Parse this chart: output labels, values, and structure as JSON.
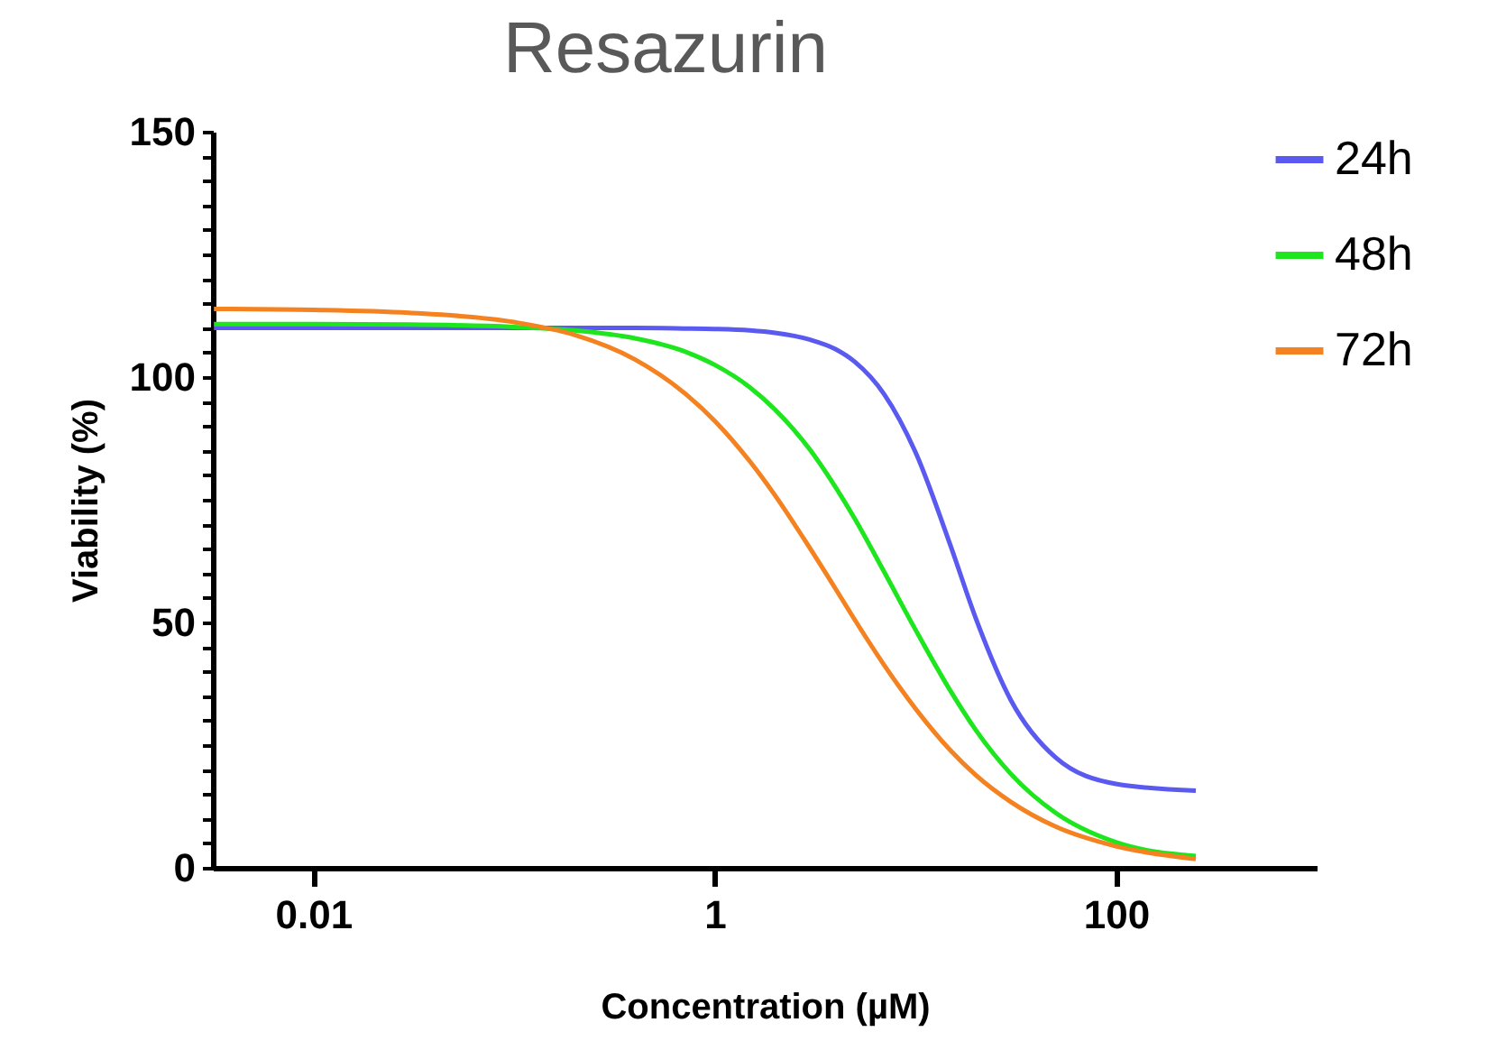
{
  "chart_data": {
    "type": "line",
    "title": "Resazurin",
    "xlabel": "Concentration (µM)",
    "ylabel": "Viability (%)",
    "log": "x",
    "x": [
      0.0032,
      0.01,
      0.03,
      0.1,
      0.2,
      0.4,
      0.7,
      1,
      1.5,
      2,
      3,
      4,
      5,
      7,
      10,
      15,
      20,
      30,
      50,
      100,
      250
    ],
    "series": [
      {
        "name": "24h",
        "color": "#5a5af0",
        "values": [
          110,
          110,
          110,
          110,
          110,
          110,
          109.9,
          109.8,
          109.5,
          109,
          107.6,
          105.7,
          103.1,
          96.5,
          84.8,
          65.6,
          50.9,
          34.1,
          22.5,
          17.1,
          15.7
        ]
      },
      {
        "name": "48h",
        "color": "#1ee61e",
        "values": [
          110.8,
          110.8,
          110.7,
          110.2,
          109.5,
          107.9,
          105.3,
          102.5,
          97.9,
          93.4,
          85.1,
          77.6,
          71.1,
          60.3,
          48.6,
          36,
          28.1,
          19.1,
          11.2,
          5.2,
          2.4
        ]
      },
      {
        "name": "72h",
        "color": "#f58220",
        "values": [
          113.9,
          113.7,
          113.1,
          111.2,
          108.6,
          103.6,
          96.9,
          91.1,
          82.8,
          75.9,
          65,
          56.9,
          50.5,
          41.3,
          32.5,
          23.9,
          18.9,
          13.4,
          8.4,
          4.4,
          1.8
        ]
      }
    ],
    "xlim": [
      0.00316,
      1000
    ],
    "xticks": [
      0.01,
      1,
      100
    ],
    "ylim": [
      0,
      150
    ],
    "yticks": [
      0,
      {
        "value": 5,
        "label": null
      },
      {
        "value": 10,
        "label": null
      },
      {
        "value": 15,
        "label": null
      },
      {
        "value": 20,
        "label": null
      },
      {
        "value": 25,
        "label": null
      },
      {
        "value": 30,
        "label": null
      },
      {
        "value": 35,
        "label": null
      },
      {
        "value": 40,
        "label": null
      },
      {
        "value": 45,
        "label": null
      },
      50,
      {
        "value": 55,
        "label": null
      },
      {
        "value": 60,
        "label": null
      },
      {
        "value": 65,
        "label": null
      },
      {
        "value": 70,
        "label": null
      },
      {
        "value": 75,
        "label": null
      },
      {
        "value": 80,
        "label": null
      },
      {
        "value": 85,
        "label": null
      },
      {
        "value": 90,
        "label": null
      },
      {
        "value": 95,
        "label": null
      },
      100,
      {
        "value": 105,
        "label": null
      },
      {
        "value": 110,
        "label": null
      },
      {
        "value": 115,
        "label": null
      },
      {
        "value": 120,
        "label": null
      },
      {
        "value": 125,
        "label": null
      },
      {
        "value": 130,
        "label": null
      },
      {
        "value": 135,
        "label": null
      },
      {
        "value": 140,
        "label": null
      },
      {
        "value": 145,
        "label": null
      },
      150
    ],
    "grid": false,
    "legend": "right"
  }
}
